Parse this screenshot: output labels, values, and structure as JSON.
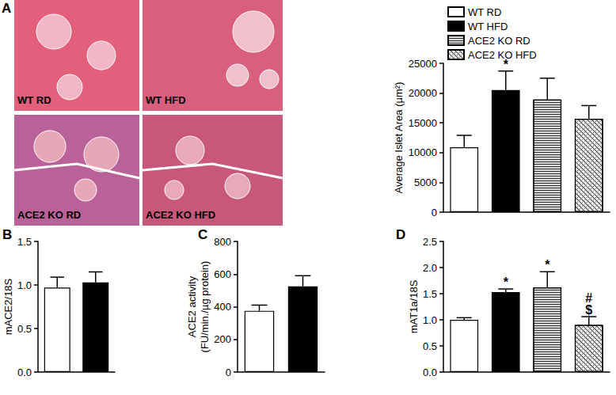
{
  "micrographs": {
    "labels": [
      "WT RD",
      "WT HFD",
      "ACE2 KO RD",
      "ACE2 KO HFD"
    ]
  },
  "chart_data": [
    {
      "panel": "A",
      "type": "bar",
      "y_label": "Average Islet Area (µm²)",
      "categories": [
        null
      ],
      "series": [
        {
          "name": "WT RD",
          "color": "#ffffff",
          "values": [
            10900
          ],
          "errors": [
            2000
          ]
        },
        {
          "name": "WT HFD",
          "color": "#000000",
          "values": [
            20500
          ],
          "errors": [
            3200
          ],
          "annotation": "*"
        },
        {
          "name": "ACE2 KO RD",
          "color": "#d9d9d9",
          "values": [
            18900
          ],
          "errors": [
            3600
          ]
        },
        {
          "name": "ACE2 KO HFD",
          "color": "#ffffff",
          "values": [
            15700
          ],
          "errors": [
            2200
          ]
        }
      ],
      "ylim": [
        0,
        25000
      ],
      "yticks": [
        0,
        5000,
        10000,
        15000,
        20000,
        25000
      ],
      "grid": false,
      "legend": "top-right",
      "tick_labels": "y"
    },
    {
      "panel": "B",
      "type": "bar",
      "y_label": "mACE2/18S",
      "categories": [
        null
      ],
      "series": [
        {
          "color": "#ffffff",
          "values": [
            0.97
          ],
          "errors": [
            0.12
          ]
        },
        {
          "color": "#000000",
          "values": [
            1.03
          ],
          "errors": [
            0.12
          ]
        }
      ],
      "ylim": [
        0,
        1.5
      ],
      "yticks": [
        {
          "value": 0,
          "label": "0.0"
        },
        {
          "value": 0.5,
          "label": "0.5"
        },
        {
          "value": 1,
          "label": "1.0"
        },
        {
          "value": 1.5,
          "label": "1.5"
        }
      ],
      "grid": false,
      "tick_labels": "y"
    },
    {
      "panel": "C",
      "type": "bar",
      "y_label": "ACE2 activity\n(FU/min./µg protein)",
      "categories": [
        null
      ],
      "series": [
        {
          "color": "#ffffff",
          "values": [
            375
          ],
          "errors": [
            35
          ]
        },
        {
          "color": "#000000",
          "values": [
            525
          ],
          "errors": [
            65
          ]
        }
      ],
      "ylim": [
        0,
        800
      ],
      "yticks": [
        0,
        200,
        400,
        600,
        800
      ],
      "grid": false,
      "tick_labels": "y"
    },
    {
      "panel": "D",
      "type": "bar",
      "y_label": "mAT1a/18S",
      "categories": [
        null
      ],
      "series": [
        {
          "color": "#ffffff",
          "values": [
            1.0
          ],
          "errors": [
            0.04
          ]
        },
        {
          "color": "#000000",
          "values": [
            1.53
          ],
          "errors": [
            0.06
          ],
          "annotation": "*"
        },
        {
          "color": "#d9d9d9",
          "values": [
            1.62
          ],
          "errors": [
            0.3
          ],
          "annotation": "*"
        },
        {
          "color": "#ffffff",
          "values": [
            0.9
          ],
          "errors": [
            0.16
          ],
          "annotation": "#\n$"
        }
      ],
      "ylim": [
        0,
        2.5
      ],
      "yticks": [
        {
          "value": 0,
          "label": "0.0"
        },
        {
          "value": 0.5,
          "label": "0.5"
        },
        {
          "value": 1,
          "label": "1.0"
        },
        {
          "value": 1.5,
          "label": "1.5"
        },
        {
          "value": 2,
          "label": "2.0"
        },
        {
          "value": 2.5,
          "label": "2.5"
        }
      ],
      "grid": false,
      "tick_labels": "y"
    }
  ]
}
